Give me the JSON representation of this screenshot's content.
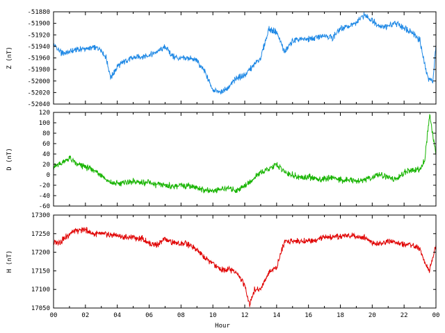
{
  "chart_data": [
    {
      "type": "line",
      "ylabel": "Z (nT)",
      "color": "#1e88e5",
      "ylim": [
        -52040,
        -51880
      ],
      "yticks": [
        -52040,
        -52020,
        -52000,
        -51980,
        -51960,
        -51940,
        -51920,
        -51900,
        -51880
      ],
      "xlim": [
        0,
        24
      ],
      "x": [
        0,
        0.5,
        1,
        1.5,
        2,
        2.5,
        3,
        3.3,
        3.6,
        4,
        4.5,
        5,
        5.5,
        6,
        6.5,
        7,
        7.5,
        8,
        8.5,
        9,
        9.5,
        10,
        10.5,
        11,
        11.5,
        12,
        12.5,
        13,
        13.5,
        14,
        14.5,
        15,
        15.5,
        16,
        16.5,
        17,
        17.5,
        18,
        18.5,
        19,
        19.5,
        20,
        20.5,
        21,
        21.5,
        22,
        22.5,
        23,
        23.2,
        23.5,
        23.8,
        24
      ],
      "series": [
        {
          "values": [
            -51938,
            -51952,
            -51950,
            -51945,
            -51944,
            -51942,
            -51945,
            -51960,
            -51995,
            -51975,
            -51965,
            -51960,
            -51958,
            -51955,
            -51950,
            -51940,
            -51958,
            -51962,
            -51960,
            -51965,
            -51985,
            -52015,
            -52020,
            -52010,
            -51995,
            -51990,
            -51975,
            -51960,
            -51910,
            -51915,
            -51950,
            -51930,
            -51928,
            -51927,
            -51925,
            -51920,
            -51925,
            -51910,
            -51905,
            -51900,
            -51885,
            -51895,
            -51905,
            -51905,
            -51900,
            -51908,
            -51915,
            -51930,
            -51960,
            -51995,
            -52000,
            -51940
          ]
        }
      ]
    },
    {
      "type": "line",
      "ylabel": "D (nT)",
      "color": "#17b400",
      "ylim": [
        -60,
        120
      ],
      "yticks": [
        -60,
        -40,
        -20,
        0,
        20,
        40,
        60,
        80,
        100,
        120
      ],
      "xlim": [
        0,
        24
      ],
      "x": [
        0,
        0.5,
        1,
        1.5,
        2,
        2.5,
        3,
        3.5,
        4,
        4.5,
        5,
        5.5,
        6,
        6.5,
        7,
        7.5,
        8,
        8.5,
        9,
        9.5,
        10,
        10.5,
        11,
        11.5,
        12,
        12.5,
        13,
        13.5,
        14,
        14.5,
        15,
        15.5,
        16,
        16.5,
        17,
        17.5,
        18,
        18.5,
        19,
        19.5,
        20,
        20.5,
        21,
        21.5,
        22,
        22.5,
        23,
        23.3,
        23.6,
        24
      ],
      "series": [
        {
          "values": [
            15,
            22,
            32,
            20,
            15,
            10,
            0,
            -15,
            -17,
            -15,
            -13,
            -15,
            -15,
            -20,
            -20,
            -22,
            -20,
            -20,
            -25,
            -30,
            -30,
            -28,
            -25,
            -30,
            -20,
            -10,
            5,
            10,
            20,
            5,
            0,
            -5,
            -5,
            -8,
            -8,
            -5,
            -10,
            -10,
            -12,
            -10,
            -5,
            0,
            -5,
            -10,
            5,
            8,
            10,
            30,
            115,
            40
          ]
        }
      ]
    },
    {
      "type": "line",
      "ylabel": "H (nT)",
      "xlabel": "Hour",
      "color": "#e00000",
      "ylim": [
        17050,
        17300
      ],
      "yticks": [
        17050,
        17100,
        17150,
        17200,
        17250,
        17300
      ],
      "xlim": [
        0,
        24
      ],
      "xtick_labels": [
        "00",
        "02",
        "04",
        "06",
        "08",
        "10",
        "12",
        "14",
        "16",
        "18",
        "20",
        "22",
        "00"
      ],
      "x": [
        0,
        0.5,
        1,
        1.5,
        2,
        2.5,
        3,
        3.5,
        4,
        4.5,
        5,
        5.5,
        6,
        6.5,
        7,
        7.5,
        8,
        8.5,
        9,
        9.5,
        10,
        10.5,
        11,
        11.5,
        12,
        12.3,
        12.6,
        13,
        13.5,
        14,
        14.5,
        15,
        15.5,
        16,
        16.5,
        17,
        17.5,
        18,
        18.5,
        19,
        19.5,
        20,
        20.5,
        21,
        21.5,
        22,
        22.5,
        23,
        23.3,
        23.6,
        24
      ],
      "series": [
        {
          "values": [
            17225,
            17230,
            17250,
            17258,
            17260,
            17250,
            17248,
            17248,
            17245,
            17240,
            17240,
            17238,
            17225,
            17220,
            17235,
            17225,
            17225,
            17220,
            17205,
            17185,
            17170,
            17155,
            17155,
            17145,
            17110,
            17060,
            17100,
            17100,
            17145,
            17160,
            17230,
            17230,
            17230,
            17232,
            17232,
            17240,
            17240,
            17243,
            17245,
            17245,
            17240,
            17225,
            17225,
            17230,
            17225,
            17220,
            17220,
            17210,
            17170,
            17150,
            17220
          ]
        }
      ]
    }
  ]
}
